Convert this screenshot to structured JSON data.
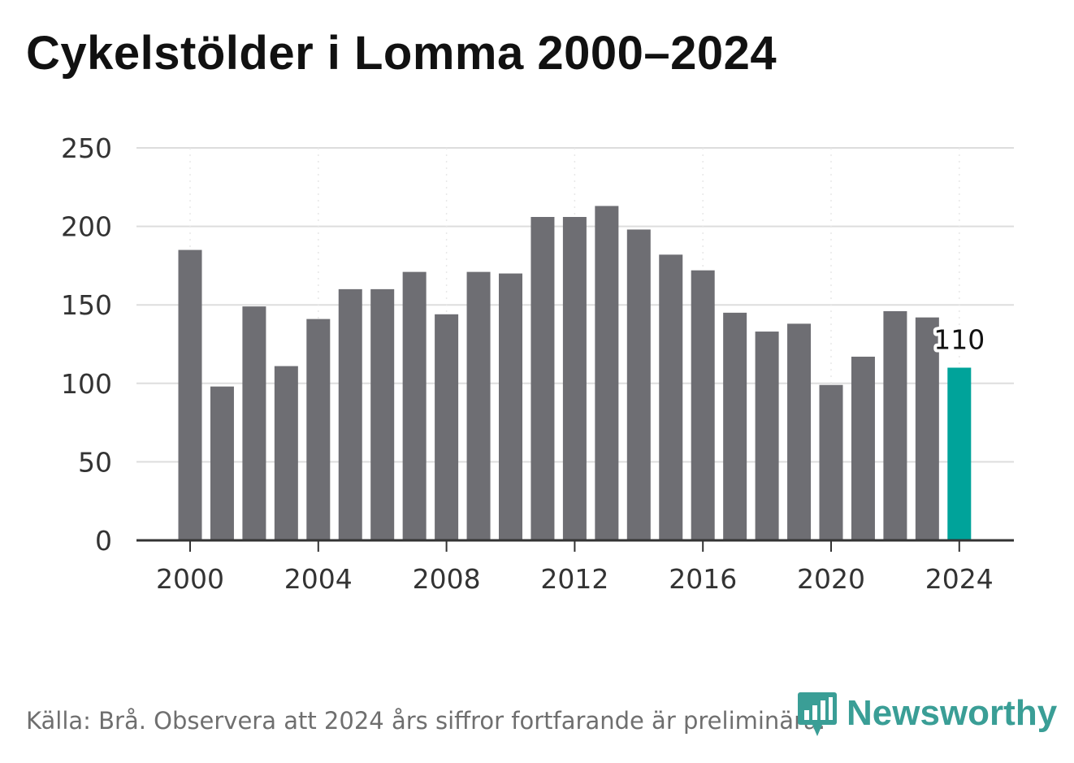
{
  "title": "Cykelstölder i Lomma 2000–2024",
  "source": "Källa: Brå. Observera att 2024 års siffror fortfarande är preliminära.",
  "brand": {
    "name": "Newsworthy",
    "color": "#3a9e96",
    "icon": "newsworthy-logo-icon"
  },
  "colors": {
    "bar": "#6e6e73",
    "highlight": "#00a39a",
    "grid": "#dddddd",
    "axis": "#333333"
  },
  "chart_data": {
    "type": "bar",
    "categories": [
      "2000",
      "2001",
      "2002",
      "2003",
      "2004",
      "2005",
      "2006",
      "2007",
      "2008",
      "2009",
      "2010",
      "2011",
      "2012",
      "2013",
      "2014",
      "2015",
      "2016",
      "2017",
      "2018",
      "2019",
      "2020",
      "2021",
      "2022",
      "2023",
      "2024"
    ],
    "values": [
      185,
      98,
      149,
      111,
      141,
      160,
      160,
      171,
      144,
      171,
      170,
      206,
      206,
      213,
      198,
      182,
      172,
      145,
      133,
      138,
      99,
      117,
      146,
      142,
      110
    ],
    "highlight_index": 24,
    "data_label": "110",
    "ylim": [
      0,
      250
    ],
    "yticks": [
      "0",
      "50",
      "100",
      "150",
      "200",
      "250"
    ],
    "xticks": [
      "2000",
      "2004",
      "2008",
      "2012",
      "2016",
      "2020",
      "2024"
    ],
    "grid": true,
    "legend": "none"
  }
}
